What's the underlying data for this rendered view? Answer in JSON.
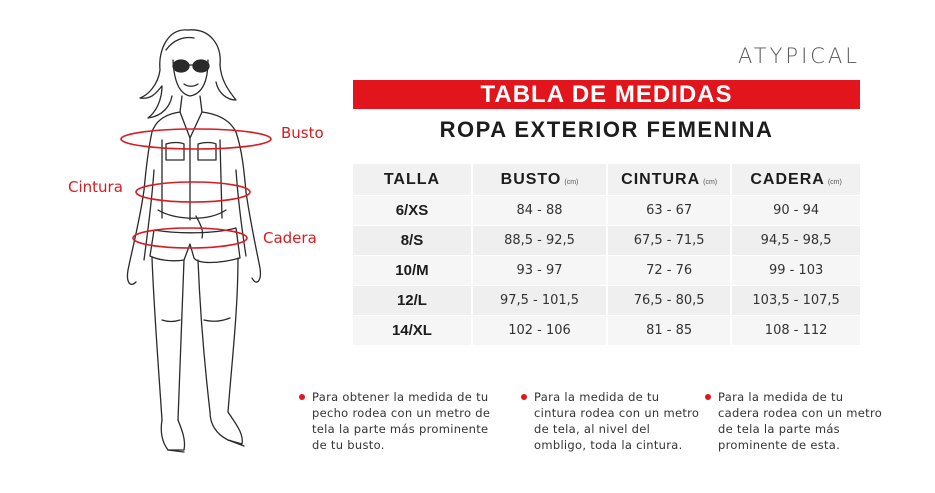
{
  "brand": "ATYPICAL",
  "header": {
    "title": "TABLA DE MEDIDAS",
    "subtitle": "ROPA EXTERIOR FEMENINA"
  },
  "figure_labels": {
    "busto": "Busto",
    "cintura": "Cintura",
    "cadera": "Cadera"
  },
  "table": {
    "columns": [
      {
        "label": "TALLA",
        "unit": ""
      },
      {
        "label": "BUSTO",
        "unit": "(cm)"
      },
      {
        "label": "CINTURA",
        "unit": "(cm)"
      },
      {
        "label": "CADERA",
        "unit": "(cm)"
      }
    ],
    "rows": [
      {
        "talla": "6/XS",
        "busto": "84 - 88",
        "cintura": "63 -  67",
        "cadera": "90 - 94"
      },
      {
        "talla": "8/S",
        "busto": "88,5 - 92,5",
        "cintura": "67,5 -  71,5",
        "cadera": "94,5 - 98,5"
      },
      {
        "talla": "10/M",
        "busto": "93 - 97",
        "cintura": "72 - 76",
        "cadera": "99 - 103"
      },
      {
        "talla": "12/L",
        "busto": "97,5 - 101,5",
        "cintura": "76,5 - 80,5",
        "cadera": "103,5 - 107,5"
      },
      {
        "talla": "14/XL",
        "busto": "102 - 106",
        "cintura": "81 - 85",
        "cadera": "108 - 112"
      }
    ]
  },
  "notes": [
    "Para obtener la medida de tu pecho rodea con un metro de tela la parte más prominente de tu busto.",
    "Para la medida de tu cintura rodea con un metro de tela, al nivel del ombligo, toda la cintura.",
    "Para la medida de tu cadera rodea con un metro de tela la parte más prominente de esta."
  ],
  "colors": {
    "accent": "#e2151c",
    "measure_text": "#d81b22"
  }
}
